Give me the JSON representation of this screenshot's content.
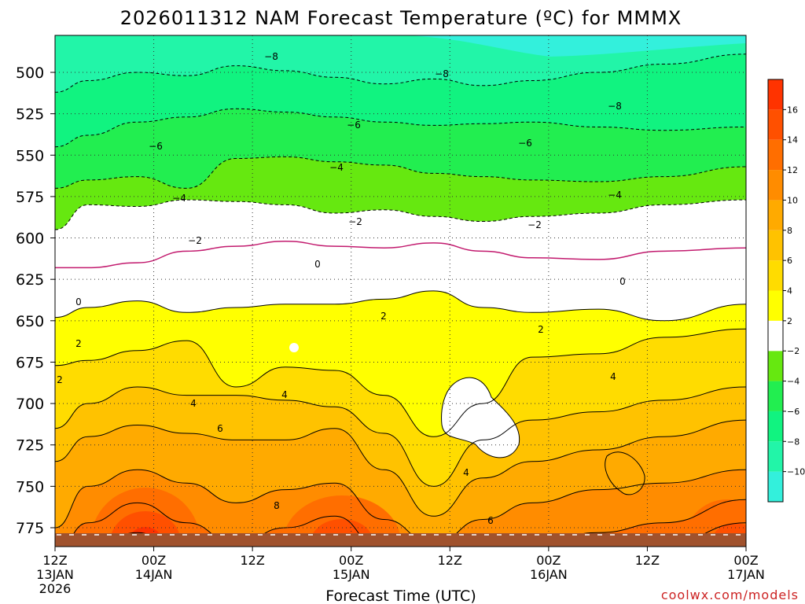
{
  "chart_data": {
    "type": "contour",
    "title": "2026011312 NAM Forecast Temperature (ºC) for MMMX",
    "xlabel": "Forecast Time (UTC)",
    "ylabel": "Pressure (hPa)",
    "credit": "coolwx.com/models",
    "ylim": [
      790,
      480
    ],
    "y_ticks": [
      500,
      525,
      550,
      575,
      600,
      625,
      650,
      675,
      700,
      725,
      750,
      775
    ],
    "x_ticks": [
      {
        "hour": 0,
        "line1": "12Z",
        "line2": "13JAN",
        "line3": "2026"
      },
      {
        "hour": 12,
        "line1": "00Z",
        "line2": "14JAN",
        "line3": ""
      },
      {
        "hour": 24,
        "line1": "12Z",
        "line2": "",
        "line3": ""
      },
      {
        "hour": 36,
        "line1": "00Z",
        "line2": "15JAN",
        "line3": ""
      },
      {
        "hour": 48,
        "line1": "12Z",
        "line2": "",
        "line3": ""
      },
      {
        "hour": 60,
        "line1": "00Z",
        "line2": "16JAN",
        "line3": ""
      },
      {
        "hour": 72,
        "line1": "12Z",
        "line2": "",
        "line3": ""
      },
      {
        "hour": 84,
        "line1": "00Z",
        "line2": "17JAN",
        "line3": ""
      }
    ],
    "colorbar": {
      "levels": [
        -12,
        -10,
        -8,
        -6,
        -4,
        -2,
        2,
        4,
        6,
        8,
        10,
        12,
        14,
        16,
        18
      ],
      "labels": [
        "16",
        "14",
        "12",
        "10",
        "8",
        "6",
        "4",
        "2",
        "−2",
        "−4",
        "−6",
        "−8",
        "−10"
      ],
      "colors": {
        "lt_-10": "#33f0dc",
        "-10_-8": "#22f5a8",
        "-8_-6": "#11f380",
        "-6_-4": "#22ee50",
        "-4_-2": "#66e810",
        "-2_2": "#ffffff",
        "2_4": "#ffff00",
        "4_6": "#ffdc00",
        "6_8": "#ffc200",
        "8_10": "#ffaa00",
        "10_12": "#ff8c00",
        "12_14": "#ff6e00",
        "14_16": "#ff5000",
        "16_18": "#ff3300"
      }
    },
    "contour_labels": [
      "−8",
      "−8",
      "−8",
      "−6",
      "−6",
      "−6",
      "−4",
      "−4",
      "−4",
      "−2",
      "−2",
      "−2",
      "0",
      "0",
      "0",
      "2",
      "2",
      "2",
      "2",
      "4",
      "4",
      "4",
      "4",
      "6",
      "6",
      "8",
      "10"
    ],
    "isotherm_profiles_hPa": {
      "iso_-8": [
        512,
        505,
        500,
        502,
        496,
        499,
        503,
        507,
        504,
        508,
        505,
        500,
        495,
        489
      ],
      "iso_-6": [
        545,
        538,
        530,
        527,
        522,
        524,
        527,
        530,
        532,
        531,
        530,
        533,
        535,
        533
      ],
      "iso_-4": [
        570,
        565,
        563,
        570,
        552,
        551,
        554,
        556,
        561,
        563,
        565,
        566,
        563,
        557
      ],
      "iso_-2": [
        595,
        580,
        581,
        577,
        578,
        580,
        585,
        583,
        587,
        590,
        587,
        585,
        580,
        577
      ],
      "iso_0": [
        618,
        618,
        615,
        608,
        605,
        602,
        605,
        606,
        603,
        608,
        612,
        613,
        608,
        606
      ],
      "iso_2": [
        648,
        642,
        638,
        645,
        642,
        640,
        640,
        637,
        632,
        642,
        645,
        643,
        650,
        640
      ],
      "iso_4": [
        677,
        674,
        668,
        662,
        690,
        678,
        680,
        695,
        720,
        700,
        672,
        670,
        660,
        655
      ],
      "iso_6": [
        715,
        700,
        690,
        695,
        695,
        698,
        702,
        718,
        750,
        722,
        710,
        705,
        698,
        690
      ],
      "iso_8": [
        735,
        720,
        713,
        718,
        722,
        722,
        715,
        740,
        768,
        745,
        735,
        728,
        720,
        710
      ],
      "iso_10": [
        775,
        750,
        740,
        748,
        760,
        752,
        748,
        770,
        785,
        770,
        760,
        752,
        748,
        740
      ],
      "iso_12": [
        790,
        772,
        760,
        772,
        785,
        775,
        768,
        790,
        790,
        790,
        785,
        778,
        772,
        758
      ],
      "iso_14": [
        790,
        788,
        778,
        790,
        790,
        790,
        782,
        790,
        790,
        790,
        790,
        790,
        785,
        772
      ],
      "iso_16": [
        790,
        790,
        790,
        790,
        790,
        790,
        790,
        790,
        790,
        790,
        790,
        790,
        790,
        788
      ]
    },
    "profile_hours": [
      0,
      4,
      10,
      16,
      22,
      28,
      34,
      40,
      46,
      52,
      58,
      66,
      74,
      84
    ]
  }
}
